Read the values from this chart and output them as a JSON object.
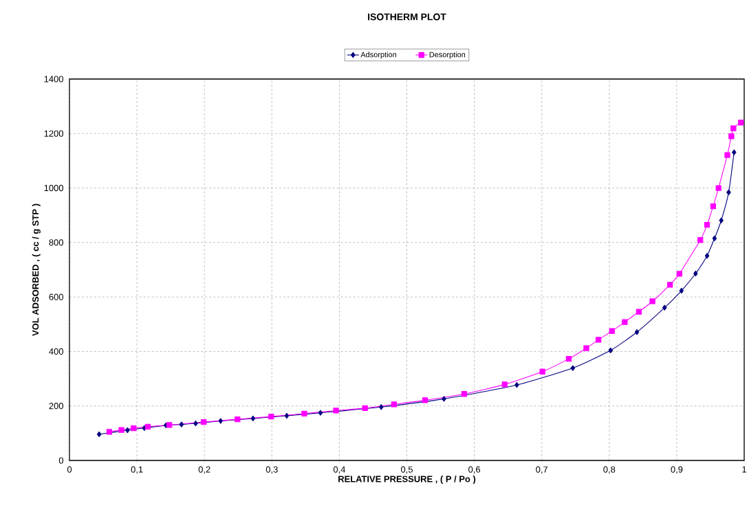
{
  "chart_data": {
    "type": "line",
    "title": "ISOTHERM PLOT",
    "xlabel": "RELATIVE PRESSURE ,  ( P / Po )",
    "ylabel": "VOL ADSORBED ,  ( cc / g  STP )",
    "series": [
      {
        "name": "Adsorption",
        "color": "#000080",
        "marker": "diamond",
        "x": [
          0.044,
          0.086,
          0.111,
          0.143,
          0.166,
          0.187,
          0.224,
          0.272,
          0.322,
          0.372,
          0.462,
          0.555,
          0.663,
          0.746,
          0.802,
          0.841,
          0.882,
          0.907,
          0.928,
          0.945,
          0.956,
          0.966,
          0.977,
          0.985
        ],
        "values": [
          96,
          111,
          119,
          129,
          132,
          136,
          145,
          154,
          164,
          175,
          196,
          226,
          277,
          339,
          404,
          471,
          561,
          623,
          686,
          751,
          815,
          881,
          984,
          1131
        ]
      },
      {
        "name": "Desorption",
        "color": "#ff00ff",
        "marker": "square",
        "x": [
          0.059,
          0.077,
          0.095,
          0.116,
          0.148,
          0.199,
          0.249,
          0.299,
          0.348,
          0.395,
          0.438,
          0.481,
          0.527,
          0.585,
          0.645,
          0.701,
          0.74,
          0.766,
          0.784,
          0.804,
          0.823,
          0.844,
          0.864,
          0.89,
          0.904,
          0.935,
          0.945,
          0.954,
          0.962,
          0.975,
          0.981,
          0.984,
          0.995
        ],
        "values": [
          105,
          112,
          118,
          124,
          130,
          141,
          151,
          161,
          172,
          183,
          192,
          206,
          221,
          244,
          279,
          326,
          373,
          412,
          443,
          475,
          508,
          546,
          584,
          645,
          685,
          809,
          865,
          933,
          1000,
          1121,
          1190,
          1219,
          1240
        ]
      }
    ],
    "xlim": [
      0,
      1
    ],
    "ylim": [
      0,
      1400
    ],
    "xticks": [
      0,
      {
        "value": 0.1,
        "label": "0,1"
      },
      {
        "value": 0.2,
        "label": "0,2"
      },
      {
        "value": 0.3,
        "label": "0,3"
      },
      {
        "value": 0.4,
        "label": "0,4"
      },
      {
        "value": 0.5,
        "label": "0,5"
      },
      {
        "value": 0.6,
        "label": "0,6"
      },
      {
        "value": 0.7,
        "label": "0,7"
      },
      {
        "value": 0.8,
        "label": "0,8"
      },
      {
        "value": 0.9,
        "label": "0,9"
      },
      1
    ],
    "yticks": [
      0,
      200,
      400,
      600,
      800,
      1000,
      1200,
      1400
    ],
    "grid": true,
    "legend": "top"
  }
}
